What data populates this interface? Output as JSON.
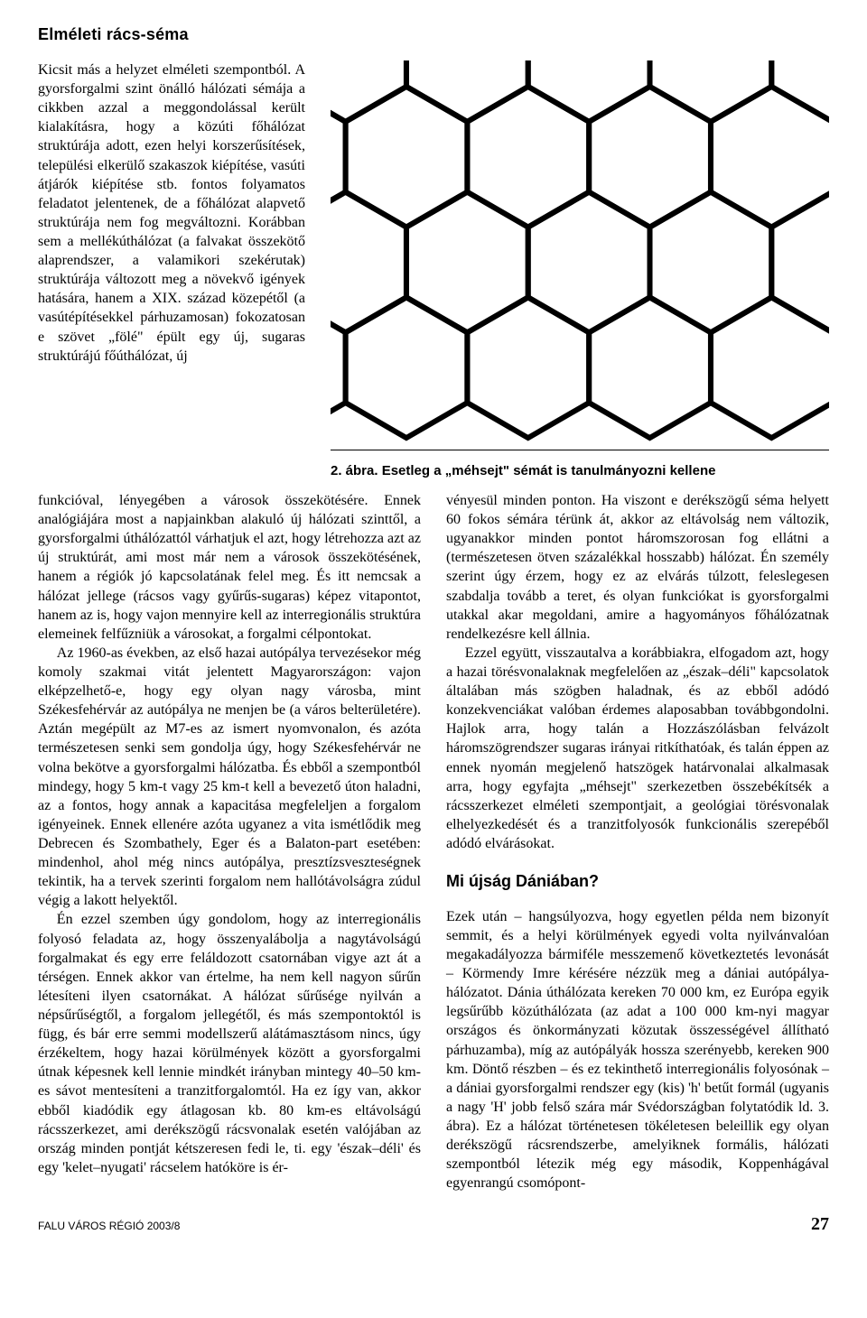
{
  "heading1": "Elméleti rács-séma",
  "narrowText": "Kicsit más a helyzet elméleti szempontból. A gyorsforgalmi szint önálló hálózati sémája a cikkben azzal a meggondolással került kialakításra, hogy a közúti főhálózat struktúrája adott, ezen helyi korszerűsítések, települési elkerülő szakaszok kiépítése, vasúti átjárók kiépítése stb. fontos folyamatos feladatot jelentenek, de a főhálózat alapvető struktúrája nem fog megváltozni. Korábban sem a mellékúthálózat (a falvakat összekötő alaprendszer, a valamikori szekérutak) struktúrája változott meg a növekvő igények hatására, hanem a XIX. század közepétől (a vasútépítésekkel párhuzamosan) fokozatosan e szövet „fölé\" épült egy új, sugaras struktúrájú főúthálózat, új",
  "caption_prefix": "2. ábra. ",
  "caption_body": "Esetleg a „méhsejt\" sémát is tanulmányozni kellene",
  "col_p1": "funkcióval, lényegében a városok összekötésére. Ennek analógiájára most a napjainkban alakuló új hálózati szinttől, a gyorsforgalmi úthálózattól várhatjuk el azt, hogy létrehozza azt az új struktúrát, ami most már nem a városok összekötésének, hanem a régiók jó kapcsolatának felel meg. És itt nemcsak a hálózat jellege (rácsos vagy gyűrűs-sugaras) képez vitapontot, hanem az is, hogy vajon mennyire kell az interregionális struktúra elemeinek felfűzniük a városokat, a forgalmi célpontokat.",
  "col_p2": "Az 1960-as években, az első hazai autópálya tervezésekor még komoly szakmai vitát jelentett Magyarországon: vajon elképzelhető-e, hogy egy olyan nagy városba, mint Székesfehérvár az autópálya ne menjen be (a város belterületére). Aztán megépült az M7-es az ismert nyomvonalon, és azóta természetesen senki sem gondolja úgy, hogy Székesfehérvár ne volna bekötve a gyorsforgalmi hálózatba. És ebből a szempontból mindegy, hogy 5 km-t vagy 25 km-t kell a bevezető úton haladni, az a fontos, hogy annak a kapacitása megfeleljen a forgalom igényeinek. Ennek ellenére azóta ugyanez a vita ismétlődik meg Debrecen és Szombathely, Eger és a Balaton-part esetében: mindenhol, ahol még nincs autópálya, presztízsveszteségnek tekintik, ha a tervek szerinti forgalom nem hallótávolságra zúdul végig a lakott helyektől.",
  "col_p3": "Én ezzel szemben úgy gondolom, hogy az interregionális folyosó feladata az, hogy összenyalábolja a nagytávolságú forgalmakat és egy erre feláldozott csatornában vigye azt át a térségen. Ennek akkor van értelme, ha nem kell nagyon sűrűn létesíteni ilyen csatornákat. A hálózat sűrűsége nyilván a népsűrűségtől, a forgalom jellegétől, és más szempontoktól is függ, és bár erre semmi modellszerű alátámasztásom nincs, úgy érzékeltem, hogy hazai körülmények között a gyorsforgalmi útnak képesnek kell lennie mindkét irányban mintegy 40–50 km-es sávot mentesíteni a tranzitforgalomtól. Ha ez így van, akkor ebből kiadódik egy átlagosan kb. 80 km-es eltávolságú rácsszerkezet, ami derékszögű rácsvonalak esetén valójában az ország minden pontját kétszeresen fedi le, ti. egy 'észak–déli' és egy 'kelet–nyugati' rácselem hatóköre is ér-",
  "col_p4": "vényesül minden ponton. Ha viszont e derékszögű séma helyett 60 fokos sémára térünk át, akkor az eltávolság nem változik, ugyanakkor minden pontot háromszorosan fog ellátni a (természetesen ötven százalékkal hosszabb) hálózat. Én személy szerint úgy érzem, hogy ez az elvárás túlzott, feleslegesen szabdalja tovább a teret, és olyan funkciókat is gyorsforgalmi utakkal akar megoldani, amire a hagyományos főhálózatnak rendelkezésre kell állnia.",
  "col_p5": "Ezzel együtt, visszautalva a korábbiakra, elfogadom azt, hogy a hazai törésvonalaknak megfelelően az „észak–déli\" kapcsolatok általában más szögben haladnak, és az ebből adódó konzekvenciákat valóban érdemes alaposabban továbbgondolni. Hajlok arra, hogy talán a Hozzászólásban felvázolt háromszögrendszer sugaras irányai ritkíthatóak, és talán éppen az ennek nyomán megjelenő hatszögek határvonalai alkalmasak arra, hogy egyfajta „méhsejt\" szerkezetben összebékítsék a rácsszerkezet elméleti szempontjait, a geológiai törésvonalak elhelyezkedését és a tranzitfolyosók funkcionális szerepéből adódó elvárásokat.",
  "heading2": "Mi újság Dániában?",
  "col_p6": "Ezek után – hangsúlyozva, hogy egyetlen példa nem bizonyít semmit, és a helyi körülmények egyedi volta nyilvánvalóan megakadályozza bármiféle messzemenő következtetés levonását – Körmendy Imre kérésére nézzük meg a dániai autópálya-hálózatot. Dánia úthálózata kereken 70 000 km, ez Európa egyik legsűrűbb közúthálózata (az adat a 100 000 km-nyi magyar országos és önkormányzati közutak összességével állítható párhuzamba), míg az autópályák hossza szerényebb, kereken 900 km. Döntő részben – és ez tekinthető interregionális folyosónak – a dániai gyorsforgalmi rendszer egy (kis) 'h' betűt formál (ugyanis a nagy 'H' jobb felső szára már Svédországban folytatódik ld. 3. ábra). Ez a hálózat történetesen tökéletesen beleillik egy olyan derékszögű rácsrendszerbe, amelyiknek formális, hálózati szempontból létezik még egy második, Koppenhágával egyenrangú csomópont-",
  "footer_left": "FALU VÁROS RÉGIÓ 2003/8",
  "page_number": "27",
  "diagram": {
    "type": "honeycomb",
    "stroke": "#000000",
    "stroke_width": 6,
    "background": "#ffffff",
    "hex_radius": 78,
    "rows": 3,
    "cols": 4
  }
}
